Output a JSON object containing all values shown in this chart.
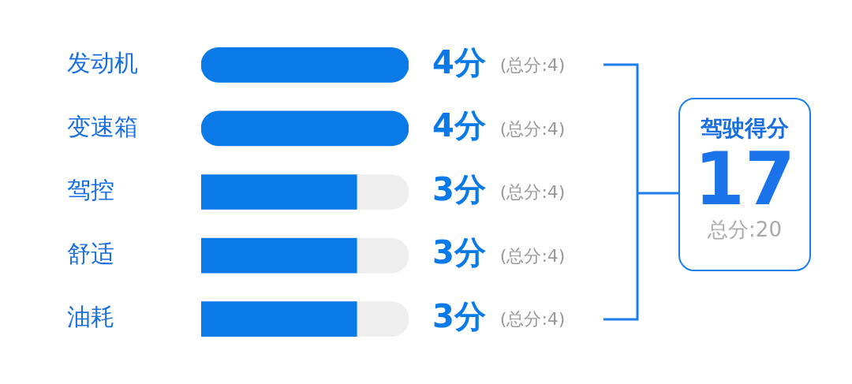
{
  "chart_data": {
    "type": "bar",
    "orientation": "horizontal",
    "stacked": true,
    "categories": [
      "发动机",
      "变速箱",
      "驾控",
      "舒适",
      "油耗"
    ],
    "series": [
      {
        "color": "#0a7ae8",
        "values": [
          4,
          4,
          3,
          3,
          3
        ],
        "value_labels": [
          "4分",
          "4分",
          "3分",
          "3分",
          "3分"
        ]
      },
      {
        "color": "#eeeeee",
        "values": [
          0,
          0,
          1,
          1,
          1
        ]
      }
    ],
    "xlim": [
      0,
      4
    ],
    "tick_labels": "y",
    "grid": false,
    "legend": false,
    "annotations": [
      "(总分:4)",
      "(总分:4)",
      "(总分:4)",
      "(总分:4)",
      "(总分:4)",
      "驾驶得分",
      "17",
      "总分:20"
    ]
  }
}
